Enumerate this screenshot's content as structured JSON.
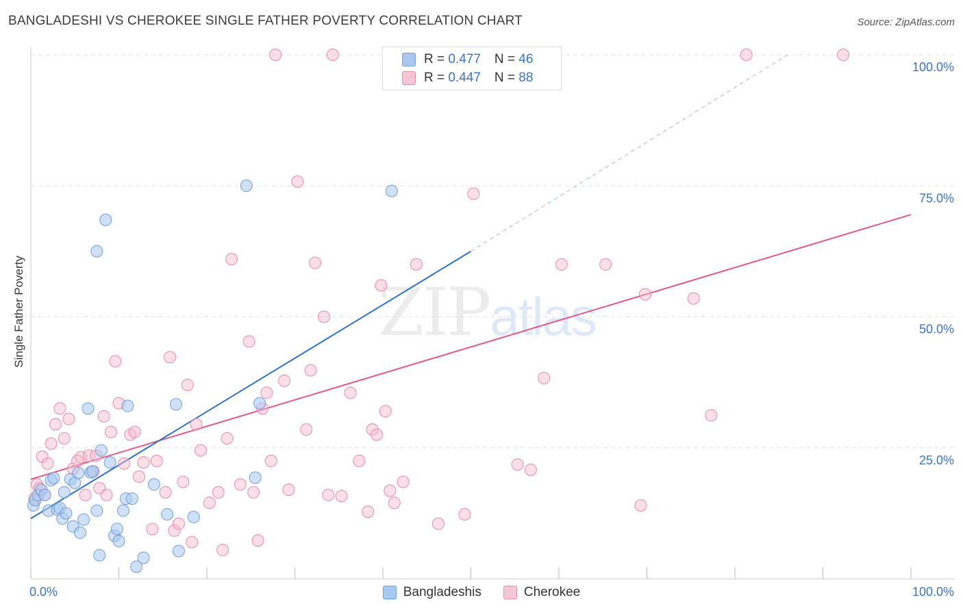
{
  "title": "BANGLADESHI VS CHEROKEE SINGLE FATHER POVERTY CORRELATION CHART",
  "source": "Source: ZipAtlas.com",
  "watermark": {
    "zip": "ZIP",
    "atlas": "atlas"
  },
  "legend": {
    "rows": [
      {
        "r_label": "R = ",
        "r_value": "0.477",
        "n_label": "N = ",
        "n_value": "46"
      },
      {
        "r_label": "R = ",
        "r_value": "0.447",
        "n_label": "N = ",
        "n_value": "88"
      }
    ]
  },
  "bottom_legend": {
    "a": "Bangladeshis",
    "b": "Cherokee"
  },
  "colors": {
    "blue_fill": "#a9c8f0",
    "blue_stroke": "#6f9ed8",
    "blue_line": "#2a6fcb",
    "pink_fill": "#f5b8cb",
    "pink_stroke": "#e68aa8",
    "pink_line": "#e0588a",
    "grid": "#e2e2e2",
    "axis_text": "#3a73c8"
  },
  "chart_data": {
    "type": "scatter",
    "title": "BANGLADESHI VS CHEROKEE SINGLE FATHER POVERTY CORRELATION CHART",
    "xlabel": "",
    "ylabel": "Single Father Poverty",
    "xlim": [
      0,
      100
    ],
    "ylim": [
      0,
      100
    ],
    "x_tick_labels": [
      "0.0%",
      "100.0%"
    ],
    "y_ticks": [
      25,
      50,
      75,
      100
    ],
    "y_tick_labels": [
      "25.0%",
      "50.0%",
      "75.0%",
      "100.0%"
    ],
    "series": [
      {
        "name": "Bangladeshis",
        "r": 0.477,
        "n": 46,
        "trend": {
          "x0": 0,
          "y0": 11.5,
          "x1": 50,
          "y1": 62.5,
          "dash_to_x": 86,
          "dash_to_y": 100
        },
        "points": [
          [
            0.3,
            14
          ],
          [
            0.5,
            15
          ],
          [
            0.8,
            16
          ],
          [
            1.2,
            17
          ],
          [
            1.6,
            16
          ],
          [
            2,
            13
          ],
          [
            2.3,
            18.8
          ],
          [
            2.6,
            19.2
          ],
          [
            3,
            13.2
          ],
          [
            3.3,
            13.5
          ],
          [
            3.6,
            11.5
          ],
          [
            3.8,
            16.5
          ],
          [
            4,
            12.5
          ],
          [
            4.5,
            19
          ],
          [
            4.8,
            10
          ],
          [
            5,
            18.3
          ],
          [
            5.4,
            20.2
          ],
          [
            5.6,
            8.8
          ],
          [
            6,
            11.3
          ],
          [
            6.5,
            32.5
          ],
          [
            6.8,
            20.3
          ],
          [
            7,
            20.5
          ],
          [
            7.5,
            13
          ],
          [
            7.8,
            4.5
          ],
          [
            8,
            24.5
          ],
          [
            8.5,
            68.5
          ],
          [
            9,
            22.2
          ],
          [
            9.5,
            8.2
          ],
          [
            9.8,
            9.5
          ],
          [
            10,
            7.2
          ],
          [
            10.5,
            13
          ],
          [
            10.8,
            15.3
          ],
          [
            11,
            33
          ],
          [
            11.5,
            15.3
          ],
          [
            12,
            2.3
          ],
          [
            12.8,
            4
          ],
          [
            14,
            18
          ],
          [
            15.5,
            12.3
          ],
          [
            16.5,
            33.3
          ],
          [
            16.8,
            5.3
          ],
          [
            18.5,
            11.8
          ],
          [
            24.5,
            75
          ],
          [
            26,
            33.5
          ],
          [
            25.5,
            19.3
          ],
          [
            41,
            74
          ],
          [
            7.5,
            62.5
          ]
        ]
      },
      {
        "name": "Cherokee",
        "r": 0.447,
        "n": 88,
        "trend": {
          "x0": 0,
          "y0": 19,
          "x1": 100,
          "y1": 69.5
        },
        "points": [
          [
            0.4,
            15.3
          ],
          [
            0.7,
            18
          ],
          [
            1,
            17.3
          ],
          [
            1.3,
            23.3
          ],
          [
            1.6,
            16
          ],
          [
            1.9,
            22
          ],
          [
            2.3,
            25.8
          ],
          [
            2.8,
            29.5
          ],
          [
            3.3,
            32.5
          ],
          [
            3.8,
            26.8
          ],
          [
            4.3,
            30.5
          ],
          [
            4.8,
            21
          ],
          [
            5.3,
            22.5
          ],
          [
            5.7,
            23.2
          ],
          [
            6.2,
            16
          ],
          [
            6.6,
            23.5
          ],
          [
            7.1,
            20.5
          ],
          [
            7.4,
            23.5
          ],
          [
            7.8,
            17.3
          ],
          [
            8.3,
            31
          ],
          [
            8.6,
            16
          ],
          [
            9.1,
            28
          ],
          [
            9.6,
            41.5
          ],
          [
            10,
            33.5
          ],
          [
            10.6,
            22
          ],
          [
            11.3,
            27.5
          ],
          [
            11.8,
            28
          ],
          [
            12.3,
            19.5
          ],
          [
            12.8,
            22.2
          ],
          [
            13.8,
            9.5
          ],
          [
            14.3,
            22.5
          ],
          [
            15.3,
            16.5
          ],
          [
            15.8,
            42.3
          ],
          [
            16.3,
            9.2
          ],
          [
            16.8,
            10.5
          ],
          [
            17.3,
            18.5
          ],
          [
            17.8,
            37
          ],
          [
            18.3,
            7
          ],
          [
            18.8,
            29.5
          ],
          [
            19.3,
            24.5
          ],
          [
            20.3,
            14.5
          ],
          [
            21.3,
            16.5
          ],
          [
            21.8,
            5.5
          ],
          [
            22.3,
            26.8
          ],
          [
            22.8,
            61
          ],
          [
            23.8,
            18
          ],
          [
            24.8,
            45.3
          ],
          [
            25.3,
            16.5
          ],
          [
            25.8,
            7.3
          ],
          [
            26.3,
            32.5
          ],
          [
            26.8,
            35.5
          ],
          [
            27.3,
            22.5
          ],
          [
            27.8,
            100
          ],
          [
            28.8,
            37.8
          ],
          [
            29.3,
            17
          ],
          [
            30.3,
            75.8
          ],
          [
            31.3,
            28.5
          ],
          [
            31.8,
            39.8
          ],
          [
            32.3,
            60.3
          ],
          [
            33.3,
            50
          ],
          [
            33.8,
            16
          ],
          [
            34.3,
            100
          ],
          [
            35.3,
            15.8
          ],
          [
            36.3,
            35.5
          ],
          [
            37.3,
            22.5
          ],
          [
            38.3,
            12.8
          ],
          [
            38.8,
            28.5
          ],
          [
            39.3,
            27.5
          ],
          [
            39.8,
            56
          ],
          [
            40.3,
            32
          ],
          [
            40.8,
            16.8
          ],
          [
            41.3,
            14.5
          ],
          [
            42.3,
            18.5
          ],
          [
            43.8,
            60
          ],
          [
            46.3,
            10.5
          ],
          [
            49.3,
            12.3
          ],
          [
            50.3,
            73.5
          ],
          [
            55.3,
            21.8
          ],
          [
            56.8,
            20.8
          ],
          [
            58.3,
            38.3
          ],
          [
            60.3,
            60
          ],
          [
            65.3,
            60
          ],
          [
            69.3,
            14
          ],
          [
            69.8,
            54.3
          ],
          [
            75.3,
            53.5
          ],
          [
            77.3,
            31.2
          ],
          [
            81.3,
            100
          ],
          [
            92.3,
            100
          ]
        ]
      }
    ]
  }
}
